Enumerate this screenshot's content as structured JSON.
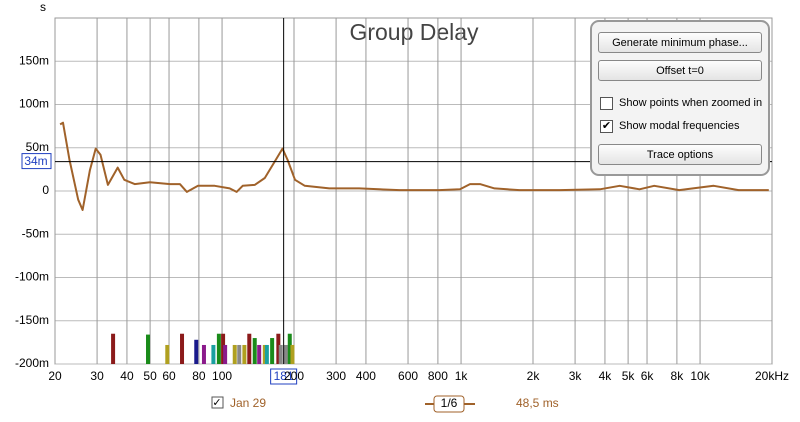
{
  "chart_data": {
    "type": "line",
    "title": "Group Delay",
    "y_label": "s",
    "xscale": "log",
    "grid": true,
    "xlim": [
      20,
      20000
    ],
    "ylim": [
      -0.2,
      0.2
    ],
    "xticks": [
      20,
      30,
      40,
      50,
      60,
      80,
      100,
      200,
      300,
      400,
      600,
      800,
      {
        "value": 1000,
        "label": "1k"
      },
      {
        "value": 2000,
        "label": "2k"
      },
      {
        "value": 3000,
        "label": "3k"
      },
      {
        "value": 4000,
        "label": "4k"
      },
      {
        "value": 5000,
        "label": "5k"
      },
      {
        "value": 6000,
        "label": "6k"
      },
      {
        "value": 8000,
        "label": "8k"
      },
      {
        "value": 10000,
        "label": "10k"
      },
      {
        "value": 20000,
        "label": "20kHz"
      }
    ],
    "yticks": [
      {
        "value": -0.2,
        "label": "-200m"
      },
      {
        "value": -0.15,
        "label": "-150m"
      },
      {
        "value": -0.1,
        "label": "-100m"
      },
      {
        "value": -0.05,
        "label": "-50m"
      },
      0,
      {
        "value": 0.05,
        "label": "50m"
      },
      {
        "value": 0.1,
        "label": "100m"
      },
      {
        "value": 0.15,
        "label": "150m"
      }
    ],
    "series": [
      {
        "name": "Jan 29",
        "color": "#a0622a",
        "visible": true,
        "x": [
          21,
          21.6,
          23,
          25,
          26.1,
          28,
          29.6,
          31,
          33.3,
          36.6,
          39,
          43.1,
          49.9,
          60.6,
          66.6,
          71.3,
          79.3,
          93.2,
          107.6,
          115,
          122,
          137,
          151,
          166,
          179,
          188,
          202,
          222,
          281,
          375,
          552,
          810,
          990,
          1090,
          1200,
          1380,
          1755,
          2585,
          3810,
          4610,
          5580,
          6430,
          8180,
          11400,
          14500,
          19400
        ],
        "values": [
          0.077,
          0.079,
          0.036,
          -0.01,
          -0.022,
          0.024,
          0.049,
          0.042,
          0.007,
          0.027,
          0.013,
          0.008,
          0.01,
          0.008,
          0.008,
          -0.001,
          0.006,
          0.006,
          0.003,
          -0.001,
          0.006,
          0.007,
          0.015,
          0.034,
          0.049,
          0.036,
          0.013,
          0.006,
          0.003,
          0.003,
          0.001,
          0.001,
          0.002,
          0.008,
          0.008,
          0.003,
          0.001,
          0.001,
          0.002,
          0.006,
          0.002,
          0.006,
          0.001,
          0.006,
          0.001,
          0.001
        ]
      }
    ],
    "modes": {
      "x": [
        35,
        49,
        59,
        68,
        78,
        84,
        92,
        97,
        101,
        103,
        113,
        118,
        124,
        130,
        137,
        143,
        151,
        154,
        162,
        172,
        176,
        185,
        192,
        197
      ],
      "values": [
        -0.165,
        -0.166,
        -0.178,
        -0.165,
        -0.172,
        -0.178,
        -0.178,
        -0.165,
        -0.165,
        -0.178,
        -0.178,
        -0.178,
        -0.178,
        -0.165,
        -0.17,
        -0.178,
        -0.178,
        -0.178,
        -0.17,
        -0.165,
        -0.178,
        -0.178,
        -0.165,
        -0.178
      ],
      "colors": [
        "#8b1a1a",
        "#1a8b1a",
        "#b0a020",
        "#8b1a1a",
        "#1a1a8b",
        "#8b1a8b",
        "#1aa0a0",
        "#1a8b1a",
        "#8b1a1a",
        "#8b1a8b",
        "#b0a020",
        "#888888",
        "#b0a020",
        "#8b1a1a",
        "#1a8b1a",
        "#8b1a8b",
        "#b0a020",
        "#1aa0a0",
        "#1a8b1a",
        "#8b1a1a",
        "#888888",
        "#888888",
        "#1a8b1a",
        "#b0a020"
      ]
    },
    "cursor": {
      "x": 181,
      "y": {
        "value": 0.034,
        "label": "34m"
      }
    },
    "smoothing": "1/6",
    "readout": "48,5 ms"
  },
  "panel": {
    "buttons": [
      "Generate minimum phase...",
      "Offset t=0",
      "Trace options"
    ],
    "checkboxes": [
      {
        "label": "Show points when zoomed in",
        "checked": false
      },
      {
        "label": "Show modal frequencies",
        "checked": true
      }
    ]
  }
}
